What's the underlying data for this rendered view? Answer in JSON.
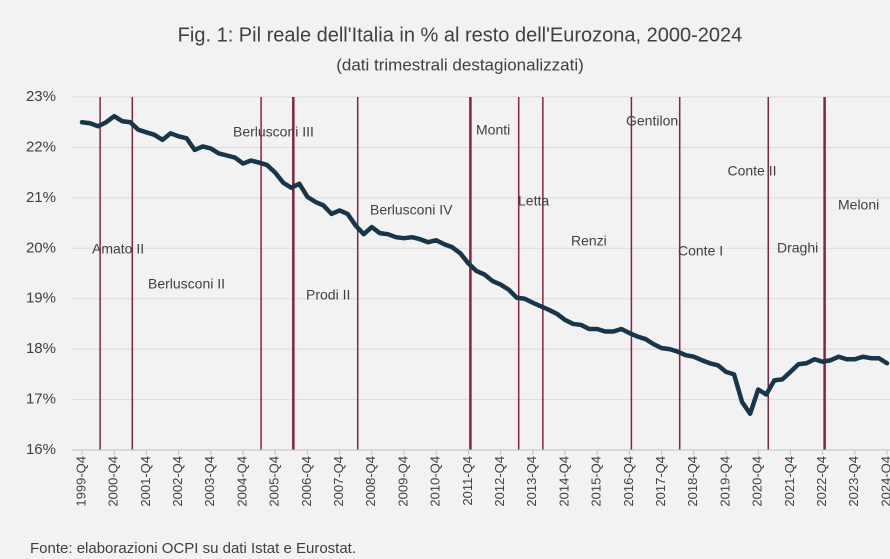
{
  "chart_data": {
    "type": "line",
    "title": "Fig. 1: Pil reale dell'Italia in % al resto dell'Eurozona, 2000-2024",
    "subtitle": "(dati trimestrali destagionalizzati)",
    "source": "Fonte: elaborazioni OCPI su dati Istat e Eurostat.",
    "categories": [
      "1999-Q4",
      null,
      null,
      null,
      "2000-Q4",
      null,
      null,
      null,
      "2001-Q4",
      null,
      null,
      null,
      "2002-Q4",
      null,
      null,
      null,
      "2003-Q4",
      null,
      null,
      null,
      "2004-Q4",
      null,
      null,
      null,
      "2005-Q4",
      null,
      null,
      null,
      "2006-Q4",
      null,
      null,
      null,
      "2007-Q4",
      null,
      null,
      null,
      "2008-Q4",
      null,
      null,
      null,
      "2009-Q4",
      null,
      null,
      null,
      "2010-Q4",
      null,
      null,
      null,
      "2011-Q4",
      null,
      null,
      null,
      "2012-Q4",
      null,
      null,
      null,
      "2013-Q4",
      null,
      null,
      null,
      "2014-Q4",
      null,
      null,
      null,
      "2015-Q4",
      null,
      null,
      null,
      "2016-Q4",
      null,
      null,
      null,
      "2017-Q4",
      null,
      null,
      null,
      "2018-Q4",
      null,
      null,
      null,
      "2019-Q4",
      null,
      null,
      null,
      "2020-Q4",
      null,
      null,
      null,
      "2021-Q4",
      null,
      null,
      null,
      "2022-Q4",
      null,
      null,
      null,
      "2023-Q4",
      null,
      null,
      null,
      "2024-Q4"
    ],
    "series": [
      {
        "name": "Pil reale Italia / Eurozona",
        "color": "#17364a",
        "values": [
          22.5,
          22.48,
          22.42,
          22.5,
          22.62,
          22.52,
          22.5,
          22.35,
          22.3,
          22.25,
          22.15,
          22.28,
          22.22,
          22.18,
          21.95,
          22.02,
          21.98,
          21.88,
          21.84,
          21.8,
          21.68,
          21.74,
          21.7,
          21.65,
          21.5,
          21.3,
          21.2,
          21.28,
          21.02,
          20.92,
          20.85,
          20.68,
          20.75,
          20.68,
          20.45,
          20.28,
          20.42,
          20.3,
          20.28,
          20.22,
          20.2,
          20.22,
          20.18,
          20.12,
          20.16,
          20.08,
          20.02,
          19.9,
          19.7,
          19.55,
          19.48,
          19.35,
          19.28,
          19.18,
          19.02,
          19.0,
          18.92,
          18.85,
          18.78,
          18.7,
          18.58,
          18.5,
          18.48,
          18.4,
          18.4,
          18.35,
          18.35,
          18.4,
          18.32,
          18.25,
          18.2,
          18.1,
          18.02,
          18.0,
          17.95,
          17.88,
          17.85,
          17.78,
          17.72,
          17.68,
          17.55,
          17.5,
          16.95,
          16.72,
          17.2,
          17.1,
          17.38,
          17.4,
          17.55,
          17.7,
          17.72,
          17.8,
          17.75,
          17.78,
          17.85,
          17.8,
          17.8,
          17.85,
          17.82,
          17.82,
          17.72
        ]
      }
    ],
    "ylim": [
      16,
      23
    ],
    "yticks": [
      {
        "value": 16,
        "label": "16%"
      },
      {
        "value": 17,
        "label": "17%"
      },
      {
        "value": 18,
        "label": "18%"
      },
      {
        "value": 19,
        "label": "19%"
      },
      {
        "value": 20,
        "label": "20%"
      },
      {
        "value": 21,
        "label": "21%"
      },
      {
        "value": 22,
        "label": "22%"
      },
      {
        "value": 23,
        "label": "23%"
      }
    ],
    "grid": true,
    "annotations": [
      "Amato II",
      "Berlusconi II",
      "Berlusconi III",
      "Prodi II",
      "Berlusconi IV",
      "Monti",
      "Letta",
      "Renzi",
      "Gentiloni",
      "Conte I",
      "Conte II",
      "Draghi",
      "Meloni"
    ]
  }
}
